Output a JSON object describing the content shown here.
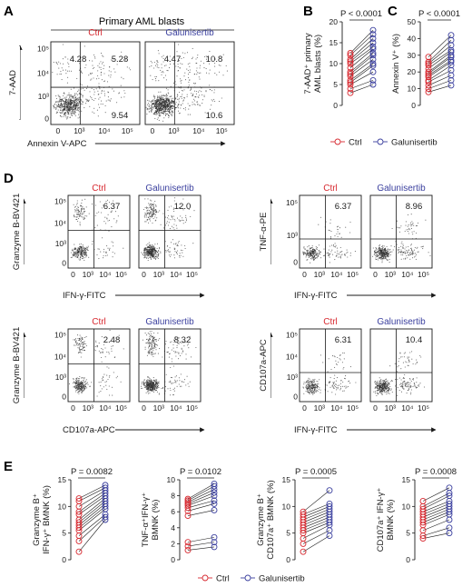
{
  "figure": {
    "colors": {
      "ctrl": "#d7282f",
      "galunisertib": "#3a3f9e",
      "ink": "#1a1a1a",
      "dot": "#303030"
    },
    "panels": {
      "A": {
        "letter": "A",
        "header": "Primary AML blasts",
        "ylabel": "7-AAD",
        "xlabel": "Annexin V-APC",
        "yticks": [
          "10⁵",
          "10⁴",
          "10³",
          "0"
        ],
        "xticks": [
          "0",
          "10³",
          "10⁴",
          "10⁵"
        ],
        "plots": [
          {
            "title": "Ctrl",
            "group": "ctrl",
            "quadrants": {
              "ul": "4.28",
              "ur": "5.28",
              "lr": "9.54"
            }
          },
          {
            "title": "Galunisertib",
            "group": "galunisertib",
            "quadrants": {
              "ul": "4.47",
              "ur": "10.8",
              "lr": "10.6"
            }
          }
        ]
      },
      "D": {
        "letter": "D",
        "blocks": [
          {
            "ylabel": "Granzyme B-BV421",
            "xlabel": "IFN-γ-FITC",
            "yticks": [
              "10⁵",
              "10⁴",
              "10³",
              "0"
            ],
            "xticks": [
              "0",
              "10³",
              "10⁴",
              "10⁵"
            ],
            "plots": [
              {
                "title": "Ctrl",
                "group": "ctrl",
                "value": "6.37"
              },
              {
                "title": "Galunisertib",
                "group": "galunisertib",
                "value": "12.0"
              }
            ]
          },
          {
            "ylabel": "TNF-α-PE",
            "xlabel": "IFN-γ-FITC",
            "yticks": [
              "10⁵",
              "10³",
              "0"
            ],
            "xticks": [
              "0",
              "10³",
              "10⁴",
              "10⁵"
            ],
            "plots": [
              {
                "title": "Ctrl",
                "group": "ctrl",
                "value": "6.37"
              },
              {
                "title": "Galunisertib",
                "group": "galunisertib",
                "value": "8.96"
              }
            ]
          },
          {
            "ylabel": "Granzyme B-BV421",
            "xlabel": "CD107a-APC",
            "yticks": [
              "10⁵",
              "10⁴",
              "10³",
              "0"
            ],
            "xticks": [
              "0",
              "10³",
              "10⁴",
              "10⁵"
            ],
            "plots": [
              {
                "title": "Ctrl",
                "group": "ctrl",
                "value": "2.48"
              },
              {
                "title": "Galunisertib",
                "group": "galunisertib",
                "value": "8.32"
              }
            ]
          },
          {
            "ylabel": "CD107a-APC",
            "xlabel": "IFN-γ-FITC",
            "yticks": [
              "10⁵",
              "10⁴",
              "10³",
              "0"
            ],
            "xticks": [
              "0",
              "10³",
              "10⁴",
              "10⁵"
            ],
            "plots": [
              {
                "title": "Ctrl",
                "group": "ctrl",
                "value": "6.31"
              },
              {
                "title": "Galunisertib",
                "group": "galunisertib",
                "value": "10.4"
              }
            ]
          }
        ]
      },
      "legend": {
        "ctrl": "Ctrl",
        "galunisertib": "Galunisertib"
      }
    }
  },
  "chart_data": [
    {
      "type": "scatter",
      "panel": "B",
      "subtype": "paired",
      "ylabel_lines": [
        "7-AAD⁺ primary",
        "AML blasts (%)"
      ],
      "annotation": "P < 0.0001",
      "ylim": [
        0,
        20
      ],
      "yticks": [
        0,
        5,
        10,
        15,
        20
      ],
      "series": [
        {
          "name": "Ctrl",
          "values": [
            3,
            4,
            5,
            5.5,
            6,
            7,
            7.5,
            8,
            9,
            10,
            10.5,
            11,
            12,
            12.5
          ]
        },
        {
          "name": "Galunisertib",
          "values": [
            5,
            6,
            8,
            9.5,
            10,
            11,
            12,
            12.5,
            13.5,
            14,
            15,
            16,
            17,
            18
          ]
        }
      ]
    },
    {
      "type": "scatter",
      "panel": "C",
      "subtype": "paired",
      "ylabel_lines": [
        "Annexin V⁺ (%)"
      ],
      "annotation": "P < 0.0001",
      "ylim": [
        0,
        50
      ],
      "yticks": [
        0,
        10,
        20,
        30,
        40,
        50
      ],
      "series": [
        {
          "name": "Ctrl",
          "values": [
            8,
            10,
            12,
            14,
            15,
            17,
            18,
            19,
            20,
            22,
            24,
            25,
            26,
            29
          ]
        },
        {
          "name": "Galunisertib",
          "values": [
            12,
            15,
            18,
            21,
            24,
            26,
            27,
            29,
            30,
            32,
            33,
            36,
            39,
            42
          ]
        }
      ]
    },
    {
      "type": "scatter",
      "panel": "E1",
      "subtype": "paired",
      "ylabel_lines": [
        "Granzyme B⁺",
        "IFN-γ⁺ BMNK (%)"
      ],
      "annotation": "P = 0.0082",
      "ylim": [
        0,
        15
      ],
      "yticks": [
        0,
        5,
        10,
        15
      ],
      "series": [
        {
          "name": "Ctrl",
          "values": [
            1.5,
            3.5,
            4.5,
            5.5,
            6,
            6.5,
            7,
            7.5,
            8.5,
            9,
            10,
            11,
            11.5
          ]
        },
        {
          "name": "Galunisertib",
          "values": [
            7.5,
            8,
            8.5,
            9.5,
            10,
            10.5,
            11,
            11.5,
            12,
            12.5,
            13,
            13.5,
            14
          ]
        }
      ]
    },
    {
      "type": "scatter",
      "panel": "E2",
      "subtype": "paired",
      "ylabel_lines": [
        "TNF-α⁺IFN-γ⁺",
        "BMNK (%)"
      ],
      "annotation": "P = 0.0102",
      "ylim": [
        0,
        10
      ],
      "yticks": [
        0,
        2,
        4,
        6,
        8,
        10
      ],
      "series": [
        {
          "name": "Ctrl",
          "values": [
            1.2,
            1.7,
            2.2,
            5.5,
            6.1,
            6.5,
            6.8,
            7,
            7.2,
            7.4,
            7.6
          ]
        },
        {
          "name": "Galunisertib",
          "values": [
            1.6,
            2.2,
            2.8,
            6.2,
            7,
            7.4,
            8,
            8.4,
            8.8,
            9.2,
            9.5
          ]
        }
      ]
    },
    {
      "type": "scatter",
      "panel": "E3",
      "subtype": "paired",
      "ylabel_lines": [
        "Granzyme B⁺",
        "CD107a⁺ BMNK (%)"
      ],
      "annotation": "P = 0.0005",
      "ylim": [
        0,
        15
      ],
      "yticks": [
        0,
        5,
        10,
        15
      ],
      "series": [
        {
          "name": "Ctrl",
          "values": [
            1.5,
            3,
            4,
            5,
            5.5,
            6,
            6.5,
            7,
            7.5,
            8,
            8.5,
            9
          ]
        },
        {
          "name": "Galunisertib",
          "values": [
            4.5,
            5.5,
            6.5,
            7,
            7.5,
            8,
            8.5,
            9,
            9.5,
            10,
            10.5,
            13
          ]
        }
      ]
    },
    {
      "type": "scatter",
      "panel": "E4",
      "subtype": "paired",
      "ylabel_lines": [
        "CD107a⁺ IFN-γ⁺",
        "BMNK (%)"
      ],
      "annotation": "P = 0.0008",
      "ylim": [
        0,
        15
      ],
      "yticks": [
        0,
        5,
        10,
        15
      ],
      "series": [
        {
          "name": "Ctrl",
          "values": [
            4,
            4.5,
            5.5,
            6.5,
            7,
            7.5,
            8,
            8.5,
            9,
            9.5,
            10,
            11
          ]
        },
        {
          "name": "Galunisertib",
          "values": [
            5,
            6,
            7.5,
            8.5,
            9,
            9.5,
            10,
            10.5,
            11,
            12,
            12.5,
            13.5
          ]
        }
      ]
    }
  ]
}
